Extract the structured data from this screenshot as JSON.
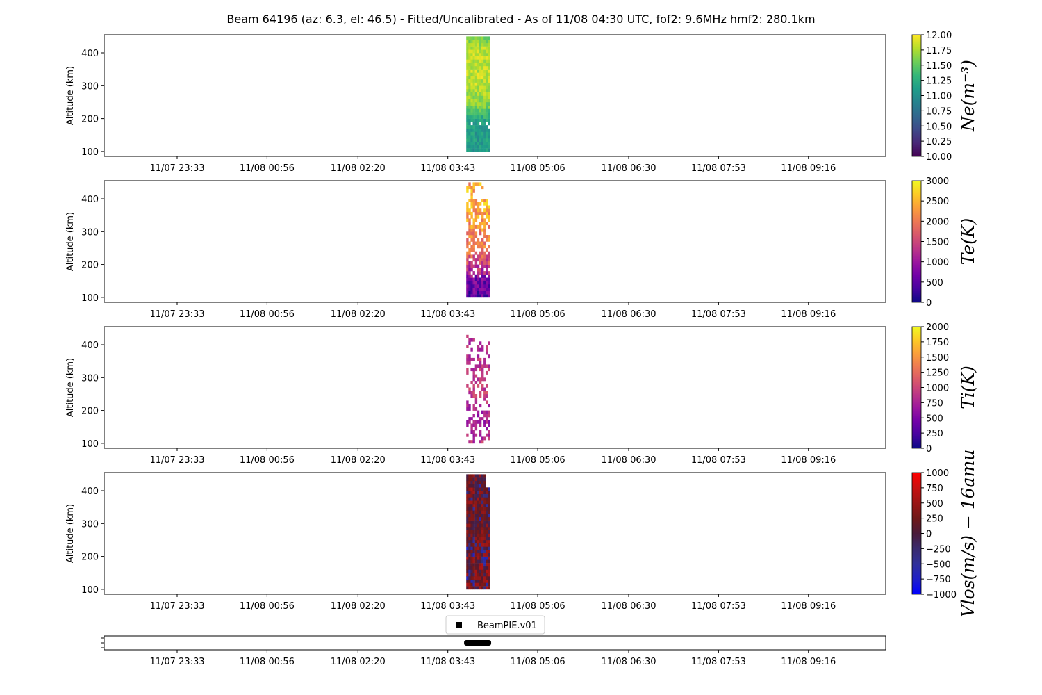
{
  "chart_data": [
    {
      "type": "heatmap",
      "parameter": "Ne",
      "ylabel": "Altitude (km)",
      "yticks": [
        "100",
        "200",
        "300",
        "400"
      ],
      "ylim": [
        85,
        455
      ],
      "xticks": [
        "11/07 23:33",
        "11/08 00:56",
        "11/08 02:20",
        "11/08 03:43",
        "11/08 05:06",
        "11/08 06:30",
        "11/08 07:53",
        "11/08 09:16"
      ],
      "data_time_span": [
        "11/08 04:00",
        "11/08 04:22"
      ],
      "data_alt_span": [
        100,
        450
      ],
      "colorbar": {
        "label": "Ne(m⁻³)",
        "ticks": [
          "10.00",
          "10.25",
          "10.50",
          "10.75",
          "11.00",
          "11.25",
          "11.50",
          "11.75",
          "12.00"
        ],
        "range": [
          10,
          12
        ],
        "colormap": "viridis"
      },
      "profile": [
        [
          100,
          11.1
        ],
        [
          160,
          11.1
        ],
        [
          200,
          11.2
        ],
        [
          240,
          11.6
        ],
        [
          300,
          11.8
        ],
        [
          400,
          11.8
        ],
        [
          450,
          11.6
        ]
      ]
    },
    {
      "type": "heatmap",
      "parameter": "Te",
      "ylabel": "Altitude (km)",
      "yticks": [
        "100",
        "200",
        "300",
        "400"
      ],
      "ylim": [
        85,
        455
      ],
      "xticks": [
        "11/07 23:33",
        "11/08 00:56",
        "11/08 02:20",
        "11/08 03:43",
        "11/08 05:06",
        "11/08 06:30",
        "11/08 07:53",
        "11/08 09:16"
      ],
      "data_time_span": [
        "11/08 04:00",
        "11/08 04:22"
      ],
      "data_alt_span": [
        100,
        450
      ],
      "colorbar": {
        "label": "Te(K)",
        "ticks": [
          "0",
          "500",
          "1000",
          "1500",
          "2000",
          "2500",
          "3000"
        ],
        "range": [
          0,
          3000
        ],
        "colormap": "plasma"
      },
      "profile": [
        [
          100,
          450
        ],
        [
          150,
          700
        ],
        [
          200,
          1500
        ],
        [
          260,
          2000
        ],
        [
          320,
          2200
        ],
        [
          400,
          2500
        ],
        [
          450,
          2300
        ]
      ]
    },
    {
      "type": "heatmap",
      "parameter": "Ti",
      "ylabel": "Altitude (km)",
      "yticks": [
        "100",
        "200",
        "300",
        "400"
      ],
      "ylim": [
        85,
        455
      ],
      "xticks": [
        "11/07 23:33",
        "11/08 00:56",
        "11/08 02:20",
        "11/08 03:43",
        "11/08 05:06",
        "11/08 06:30",
        "11/08 07:53",
        "11/08 09:16"
      ],
      "data_time_span": [
        "11/08 04:00",
        "11/08 04:22"
      ],
      "data_alt_span": [
        100,
        430
      ],
      "colorbar": {
        "label": "Ti(K)",
        "ticks": [
          "0",
          "250",
          "500",
          "750",
          "1000",
          "1250",
          "1500",
          "1750",
          "2000"
        ],
        "range": [
          0,
          2000
        ],
        "colormap": "plasma"
      },
      "profile": [
        [
          100,
          900
        ],
        [
          150,
          650
        ],
        [
          200,
          800
        ],
        [
          250,
          950
        ],
        [
          300,
          900
        ],
        [
          400,
          850
        ],
        [
          430,
          800
        ]
      ]
    },
    {
      "type": "heatmap",
      "parameter": "Vlos",
      "ylabel": "Altitude (km)",
      "yticks": [
        "100",
        "200",
        "300",
        "400"
      ],
      "ylim": [
        85,
        455
      ],
      "xticks": [
        "11/07 23:33",
        "11/08 00:56",
        "11/08 02:20",
        "11/08 03:43",
        "11/08 05:06",
        "11/08 06:30",
        "11/08 07:53",
        "11/08 09:16"
      ],
      "data_time_span": [
        "11/08 04:00",
        "11/08 04:22"
      ],
      "data_alt_span": [
        100,
        450
      ],
      "colorbar": {
        "label": "Vlos(m/s) − 16amu",
        "ticks": [
          "1000",
          "750",
          "500",
          "250",
          "0",
          "−250",
          "−500",
          "−750",
          "−1000"
        ],
        "range": [
          -1000,
          1000
        ],
        "colormap": "bwr-dark"
      },
      "profile": [
        [
          100,
          350
        ],
        [
          200,
          300
        ],
        [
          300,
          200
        ],
        [
          400,
          300
        ],
        [
          450,
          250
        ]
      ]
    },
    {
      "type": "scatter",
      "legend": "BeamPIE.v01",
      "xticks": [
        "11/07 23:33",
        "11/08 00:56",
        "11/08 02:20",
        "11/08 03:43",
        "11/08 05:06",
        "11/08 06:30",
        "11/08 07:53",
        "11/08 09:16"
      ],
      "x_span": [
        "11/08 03:58",
        "11/08 04:23"
      ]
    }
  ],
  "title": "Beam 64196 (az: 6.3, el: 46.5) - Fitted/Uncalibrated - As of 11/08 04:30 UTC, fof2: 9.6MHz  hmf2: 280.1km",
  "legend_label": "BeamPIE.v01"
}
